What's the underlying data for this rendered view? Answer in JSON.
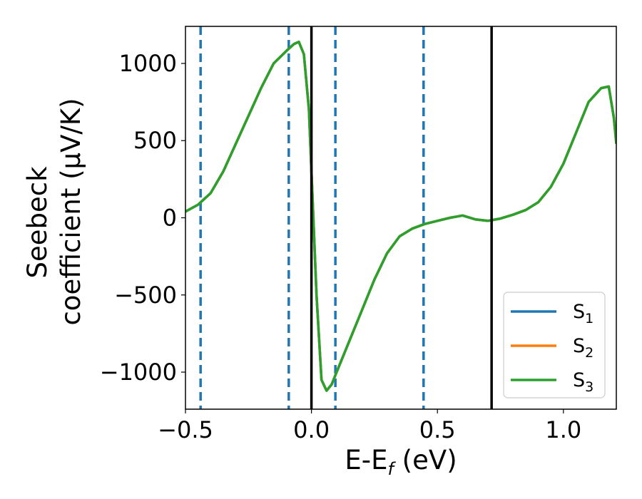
{
  "chart_data": {
    "type": "line",
    "xlabel": "E-E",
    "xlabel_sub": "f",
    "xlabel_unit": " (eV)",
    "ylabel_line1": "Seebeck",
    "ylabel_line2": "coefficient  (μV/K)",
    "xlim": [
      -0.5,
      1.21
    ],
    "ylim": [
      -1240,
      1240
    ],
    "xticks": [
      -0.5,
      0.0,
      0.5,
      1.0
    ],
    "xtick_labels": [
      "−0.5",
      "0.0",
      "0.5",
      "1.0"
    ],
    "yticks": [
      -1000,
      -500,
      0,
      500,
      1000
    ],
    "ytick_labels": [
      "−1000",
      "−500",
      "0",
      "500",
      "1000"
    ],
    "grid": false,
    "legend_position": "lower-right",
    "series": [
      {
        "name": "S",
        "name_sub": "1",
        "color": "#1f77b4",
        "x": [
          -0.5,
          -0.45,
          -0.4,
          -0.35,
          -0.3,
          -0.25,
          -0.2,
          -0.15,
          -0.1,
          -0.07,
          -0.05,
          -0.03,
          -0.01,
          0.0,
          0.02,
          0.04,
          0.06,
          0.08,
          0.1,
          0.15,
          0.2,
          0.25,
          0.3,
          0.35,
          0.4,
          0.45,
          0.5,
          0.55,
          0.6,
          0.65,
          0.7,
          0.75,
          0.8,
          0.85,
          0.9,
          0.95,
          1.0,
          1.05,
          1.1,
          1.15,
          1.18,
          1.2,
          1.21
        ],
        "y": [
          40,
          85,
          160,
          300,
          480,
          660,
          840,
          1000,
          1080,
          1125,
          1140,
          1060,
          700,
          300,
          -500,
          -1050,
          -1120,
          -1080,
          -1000,
          -800,
          -600,
          -400,
          -230,
          -120,
          -70,
          -40,
          -20,
          0,
          15,
          -10,
          -20,
          -5,
          20,
          50,
          100,
          200,
          350,
          550,
          750,
          840,
          850,
          650,
          480
        ]
      },
      {
        "name": "S",
        "name_sub": "2",
        "color": "#ff7f0e",
        "x": [
          -0.5,
          -0.45,
          -0.4,
          -0.35,
          -0.3,
          -0.25,
          -0.2,
          -0.15,
          -0.1,
          -0.07,
          -0.05,
          -0.03,
          -0.01,
          0.0,
          0.02,
          0.04,
          0.06,
          0.08,
          0.1,
          0.15,
          0.2,
          0.25,
          0.3,
          0.35,
          0.4,
          0.45,
          0.5,
          0.55,
          0.6,
          0.65,
          0.7,
          0.75,
          0.8,
          0.85,
          0.9,
          0.95,
          1.0,
          1.05,
          1.1,
          1.15,
          1.18,
          1.2,
          1.21
        ],
        "y": [
          40,
          85,
          160,
          300,
          480,
          660,
          840,
          1000,
          1080,
          1125,
          1140,
          1060,
          700,
          300,
          -500,
          -1050,
          -1120,
          -1080,
          -1000,
          -800,
          -600,
          -400,
          -230,
          -120,
          -70,
          -40,
          -20,
          0,
          15,
          -10,
          -20,
          -5,
          20,
          50,
          100,
          200,
          350,
          550,
          750,
          840,
          850,
          650,
          480
        ]
      },
      {
        "name": "S",
        "name_sub": "3",
        "color": "#2ca02c",
        "x": [
          -0.5,
          -0.45,
          -0.4,
          -0.35,
          -0.3,
          -0.25,
          -0.2,
          -0.15,
          -0.1,
          -0.07,
          -0.05,
          -0.03,
          -0.01,
          0.0,
          0.02,
          0.04,
          0.06,
          0.08,
          0.1,
          0.15,
          0.2,
          0.25,
          0.3,
          0.35,
          0.4,
          0.45,
          0.5,
          0.55,
          0.6,
          0.65,
          0.7,
          0.75,
          0.8,
          0.85,
          0.9,
          0.95,
          1.0,
          1.05,
          1.1,
          1.15,
          1.18,
          1.2,
          1.21
        ],
        "y": [
          40,
          85,
          160,
          300,
          480,
          660,
          840,
          1000,
          1080,
          1125,
          1140,
          1060,
          700,
          300,
          -500,
          -1050,
          -1120,
          -1080,
          -1000,
          -800,
          -600,
          -400,
          -230,
          -120,
          -70,
          -40,
          -20,
          0,
          15,
          -10,
          -20,
          -5,
          20,
          50,
          100,
          200,
          350,
          550,
          750,
          840,
          850,
          650,
          480
        ]
      }
    ],
    "vlines_dashed": {
      "color": "#1f77b4",
      "x": [
        -0.44,
        -0.09,
        0.095,
        0.445
      ]
    },
    "vlines_solid": {
      "color": "#000000",
      "x": [
        0.0,
        0.715
      ]
    }
  }
}
